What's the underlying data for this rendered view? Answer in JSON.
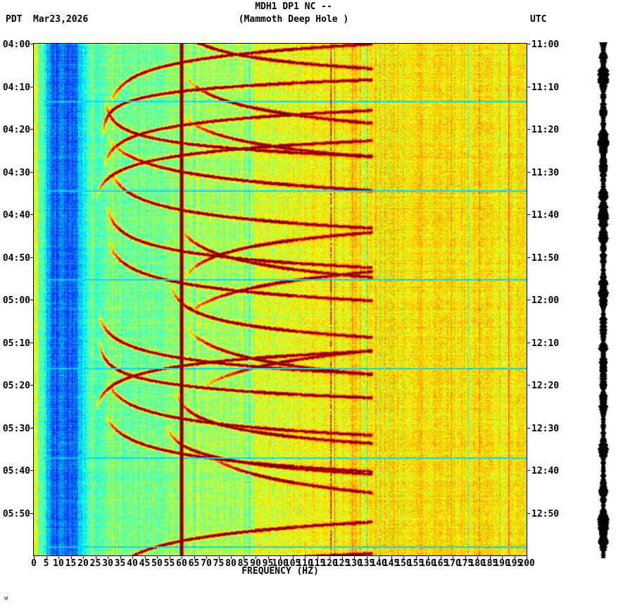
{
  "header": {
    "tz_left": "PDT",
    "date": "Mar23,2026",
    "title": "MDH1 DP1 NC --",
    "subtitle": "(Mammoth Deep Hole )",
    "tz_right": "UTC"
  },
  "footer": {
    "corner_mark": "w"
  },
  "chart_data": {
    "type": "heatmap",
    "subtype": "seismic-spectrogram",
    "title": "MDH1 DP1 NC -- (Mammoth Deep Hole )",
    "xlabel": "FREQUENCY (HZ)",
    "x_range_hz": [
      0,
      200
    ],
    "x_ticks": [
      0,
      5,
      10,
      15,
      20,
      25,
      30,
      35,
      40,
      45,
      50,
      55,
      60,
      65,
      70,
      75,
      80,
      85,
      90,
      95,
      100,
      105,
      110,
      115,
      120,
      125,
      130,
      135,
      140,
      145,
      150,
      155,
      160,
      165,
      170,
      175,
      180,
      185,
      190,
      195,
      200
    ],
    "time_span_minutes": 120,
    "y_axis_left": {
      "timezone": "PDT",
      "labels": [
        "04:00",
        "04:10",
        "04:20",
        "04:30",
        "04:40",
        "04:50",
        "05:00",
        "05:10",
        "05:20",
        "05:30",
        "05:40",
        "05:50"
      ]
    },
    "y_axis_right": {
      "timezone": "UTC",
      "labels": [
        "11:00",
        "11:10",
        "11:20",
        "11:30",
        "11:40",
        "11:50",
        "12:00",
        "12:10",
        "12:20",
        "12:30",
        "12:40",
        "12:50"
      ]
    },
    "colormap": "jet",
    "features": {
      "powerline_hz": [
        60,
        120.6,
        181
      ],
      "blue_noise_band_hz": [
        7,
        17
      ],
      "event_arcs": {
        "description": "repeating dark-red gliding harmonic arcs decaying toward low-frequency asymptotes",
        "period_minutes": 8,
        "asymptotes_hz": [
          25,
          55
        ],
        "max_visible_hz": 137
      },
      "gap_row_minutes": [
        13.4,
        34.3,
        55.2,
        76.1,
        97.0,
        117.9
      ]
    },
    "amplitude_strip": {
      "present": true,
      "color": "#000000"
    }
  }
}
